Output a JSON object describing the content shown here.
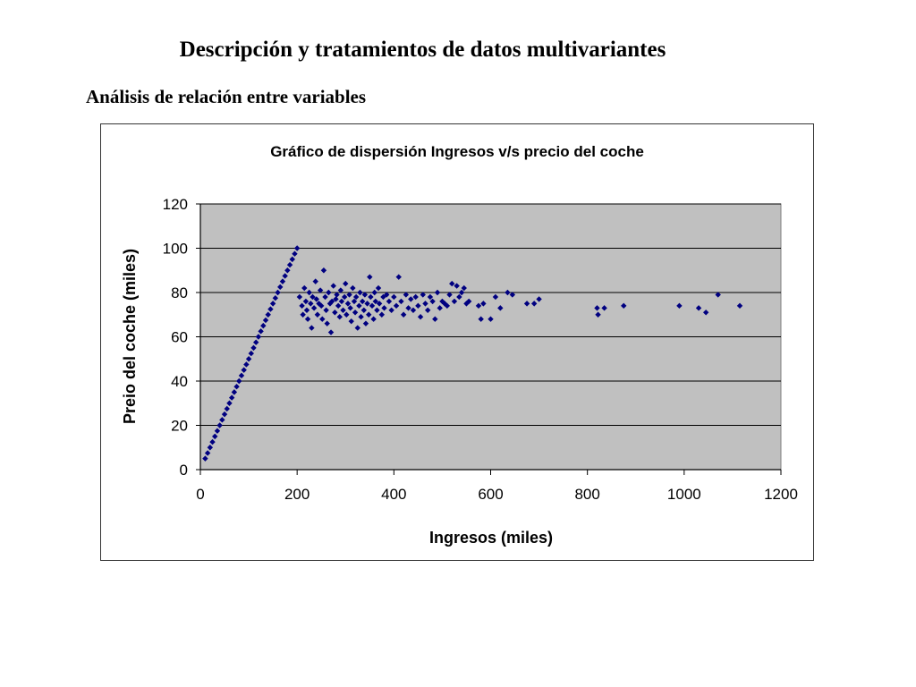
{
  "slide": {
    "title": "Descripción y tratamientos de datos multivariantes",
    "subtitle": "Análisis de relación entre variables"
  },
  "chart_data": {
    "type": "scatter",
    "title": "Gráfico de dispersión Ingresos v/s precio del coche",
    "xlabel": "Ingresos (miles)",
    "ylabel": "Preio del coche (miles)",
    "xlim": [
      0,
      1200
    ],
    "ylim": [
      0,
      120
    ],
    "xticks": [
      0,
      200,
      400,
      600,
      800,
      1000,
      1200
    ],
    "yticks": [
      0,
      20,
      40,
      60,
      80,
      100,
      120
    ],
    "grid": "horizontal",
    "legend": "none",
    "colors": {
      "marker": "#000080",
      "plot_bg": "#c0c0c0"
    },
    "series": [
      {
        "points": [
          [
            10,
            5
          ],
          [
            15,
            7.5
          ],
          [
            20,
            10
          ],
          [
            25,
            12.5
          ],
          [
            30,
            15
          ],
          [
            35,
            17.5
          ],
          [
            40,
            20
          ],
          [
            45,
            22.5
          ],
          [
            50,
            25
          ],
          [
            55,
            27.5
          ],
          [
            60,
            30
          ],
          [
            65,
            32.5
          ],
          [
            70,
            35
          ],
          [
            75,
            37.5
          ],
          [
            80,
            40
          ],
          [
            85,
            42.5
          ],
          [
            90,
            45
          ],
          [
            95,
            47.5
          ],
          [
            100,
            50
          ],
          [
            105,
            52.5
          ],
          [
            110,
            55
          ],
          [
            115,
            57.5
          ],
          [
            120,
            60
          ],
          [
            125,
            62.5
          ],
          [
            130,
            65
          ],
          [
            135,
            67.5
          ],
          [
            140,
            70
          ],
          [
            145,
            72.5
          ],
          [
            150,
            75
          ],
          [
            155,
            77.5
          ],
          [
            160,
            80
          ],
          [
            165,
            82.5
          ],
          [
            170,
            85
          ],
          [
            175,
            87.5
          ],
          [
            180,
            90
          ],
          [
            185,
            92.5
          ],
          [
            190,
            95
          ],
          [
            195,
            97.5
          ],
          [
            200,
            100
          ],
          [
            205,
            78
          ],
          [
            210,
            74
          ],
          [
            212,
            70
          ],
          [
            215,
            82
          ],
          [
            218,
            76
          ],
          [
            220,
            72
          ],
          [
            222,
            68
          ],
          [
            225,
            80
          ],
          [
            228,
            75
          ],
          [
            230,
            64
          ],
          [
            232,
            78
          ],
          [
            235,
            73
          ],
          [
            238,
            85
          ],
          [
            240,
            77
          ],
          [
            242,
            70
          ],
          [
            245,
            75
          ],
          [
            248,
            81
          ],
          [
            250,
            74
          ],
          [
            252,
            68
          ],
          [
            255,
            90
          ],
          [
            258,
            78
          ],
          [
            260,
            72
          ],
          [
            262,
            66
          ],
          [
            265,
            80
          ],
          [
            268,
            75
          ],
          [
            270,
            62
          ],
          [
            272,
            76
          ],
          [
            275,
            83
          ],
          [
            278,
            71
          ],
          [
            280,
            77
          ],
          [
            282,
            79
          ],
          [
            285,
            74
          ],
          [
            288,
            69
          ],
          [
            290,
            81
          ],
          [
            292,
            76
          ],
          [
            295,
            72
          ],
          [
            298,
            78
          ],
          [
            300,
            84
          ],
          [
            302,
            70
          ],
          [
            305,
            75
          ],
          [
            308,
            79
          ],
          [
            310,
            73
          ],
          [
            312,
            67
          ],
          [
            315,
            82
          ],
          [
            318,
            76
          ],
          [
            320,
            71
          ],
          [
            322,
            78
          ],
          [
            325,
            64
          ],
          [
            328,
            74
          ],
          [
            330,
            80
          ],
          [
            332,
            69
          ],
          [
            335,
            76
          ],
          [
            338,
            72
          ],
          [
            340,
            79
          ],
          [
            342,
            66
          ],
          [
            345,
            75
          ],
          [
            348,
            70
          ],
          [
            350,
            87
          ],
          [
            352,
            78
          ],
          [
            355,
            74
          ],
          [
            358,
            68
          ],
          [
            360,
            80
          ],
          [
            362,
            76
          ],
          [
            365,
            72
          ],
          [
            368,
            82
          ],
          [
            370,
            75
          ],
          [
            375,
            70
          ],
          [
            378,
            78
          ],
          [
            380,
            73
          ],
          [
            385,
            79
          ],
          [
            390,
            76
          ],
          [
            395,
            72
          ],
          [
            400,
            78
          ],
          [
            405,
            74
          ],
          [
            410,
            87
          ],
          [
            415,
            76
          ],
          [
            420,
            70
          ],
          [
            425,
            79
          ],
          [
            430,
            73
          ],
          [
            435,
            77
          ],
          [
            440,
            72
          ],
          [
            445,
            78
          ],
          [
            450,
            74
          ],
          [
            455,
            69
          ],
          [
            460,
            79
          ],
          [
            465,
            75
          ],
          [
            470,
            72
          ],
          [
            475,
            78
          ],
          [
            480,
            76
          ],
          [
            485,
            68
          ],
          [
            490,
            80
          ],
          [
            495,
            73
          ],
          [
            500,
            76
          ],
          [
            505,
            75
          ],
          [
            510,
            74
          ],
          [
            515,
            79
          ],
          [
            520,
            84
          ],
          [
            525,
            76
          ],
          [
            530,
            83
          ],
          [
            535,
            78
          ],
          [
            540,
            80
          ],
          [
            545,
            82
          ],
          [
            550,
            75
          ],
          [
            555,
            76
          ],
          [
            575,
            74
          ],
          [
            580,
            68
          ],
          [
            585,
            75
          ],
          [
            600,
            68
          ],
          [
            610,
            78
          ],
          [
            620,
            73
          ],
          [
            635,
            80
          ],
          [
            645,
            79
          ],
          [
            675,
            75
          ],
          [
            690,
            75
          ],
          [
            700,
            77
          ],
          [
            820,
            73
          ],
          [
            822,
            70
          ],
          [
            835,
            73
          ],
          [
            875,
            74
          ],
          [
            990,
            74
          ],
          [
            1030,
            73
          ],
          [
            1045,
            71
          ],
          [
            1070,
            79
          ],
          [
            1115,
            74
          ]
        ]
      }
    ]
  }
}
